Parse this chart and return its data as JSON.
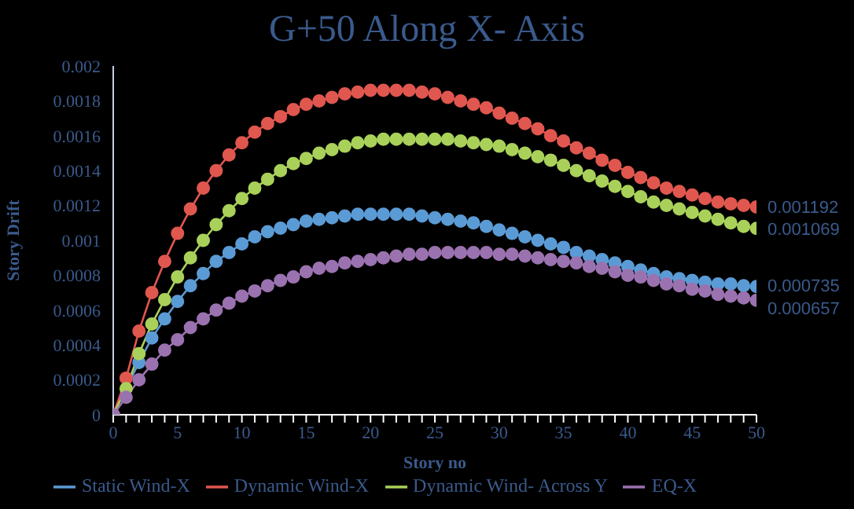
{
  "chart_data": {
    "type": "line",
    "title": "G+50 Along X- Axis",
    "xlabel": "Story no",
    "ylabel": "Story Drift",
    "x": [
      0,
      1,
      2,
      3,
      4,
      5,
      6,
      7,
      8,
      9,
      10,
      11,
      12,
      13,
      14,
      15,
      16,
      17,
      18,
      19,
      20,
      21,
      22,
      23,
      24,
      25,
      26,
      27,
      28,
      29,
      30,
      31,
      32,
      33,
      34,
      35,
      36,
      37,
      38,
      39,
      40,
      41,
      42,
      43,
      44,
      45,
      46,
      47,
      48,
      49,
      50
    ],
    "xlim": [
      0,
      50
    ],
    "xticks": [
      0,
      {
        "value": 1,
        "label": null
      },
      {
        "value": 2,
        "label": null
      },
      {
        "value": 3,
        "label": null
      },
      {
        "value": 4,
        "label": null
      },
      5,
      {
        "value": 6,
        "label": null
      },
      {
        "value": 7,
        "label": null
      },
      {
        "value": 8,
        "label": null
      },
      {
        "value": 9,
        "label": null
      },
      10,
      {
        "value": 11,
        "label": null
      },
      {
        "value": 12,
        "label": null
      },
      {
        "value": 13,
        "label": null
      },
      {
        "value": 14,
        "label": null
      },
      15,
      {
        "value": 16,
        "label": null
      },
      {
        "value": 17,
        "label": null
      },
      {
        "value": 18,
        "label": null
      },
      {
        "value": 19,
        "label": null
      },
      20,
      {
        "value": 21,
        "label": null
      },
      {
        "value": 22,
        "label": null
      },
      {
        "value": 23,
        "label": null
      },
      {
        "value": 24,
        "label": null
      },
      25,
      {
        "value": 26,
        "label": null
      },
      {
        "value": 27,
        "label": null
      },
      {
        "value": 28,
        "label": null
      },
      {
        "value": 29,
        "label": null
      },
      30,
      {
        "value": 31,
        "label": null
      },
      {
        "value": 32,
        "label": null
      },
      {
        "value": 33,
        "label": null
      },
      {
        "value": 34,
        "label": null
      },
      35,
      {
        "value": 36,
        "label": null
      },
      {
        "value": 37,
        "label": null
      },
      {
        "value": 38,
        "label": null
      },
      {
        "value": 39,
        "label": null
      },
      40,
      {
        "value": 41,
        "label": null
      },
      {
        "value": 42,
        "label": null
      },
      {
        "value": 43,
        "label": null
      },
      {
        "value": 44,
        "label": null
      },
      45,
      {
        "value": 46,
        "label": null
      },
      {
        "value": 47,
        "label": null
      },
      {
        "value": 48,
        "label": null
      },
      {
        "value": 49,
        "label": null
      },
      50
    ],
    "ylim": [
      0,
      0.002
    ],
    "yticks": [
      0,
      0.0002,
      0.0004,
      0.0006,
      0.0008,
      0.001,
      0.0012,
      0.0014,
      0.0016,
      0.0018,
      0.002
    ],
    "grid": false,
    "legend": "bottom",
    "marker": "circle",
    "line_style": "solid",
    "series": [
      {
        "name": "Static Wind-X",
        "color": "#5b9bd5",
        "values": [
          0,
          null,
          0.0003,
          0.00044,
          0.00055,
          0.00065,
          0.00074,
          0.00081,
          0.00088,
          0.00093,
          0.00098,
          0.00102,
          0.00105,
          0.00107,
          0.00109,
          0.00111,
          0.00112,
          0.00113,
          0.00114,
          0.00115,
          0.00115,
          0.00115,
          0.00115,
          0.00115,
          0.00114,
          0.00113,
          0.00112,
          0.00111,
          0.0011,
          0.00108,
          0.00106,
          0.00104,
          0.00102,
          0.001,
          0.00098,
          0.00096,
          0.00093,
          0.00091,
          0.00089,
          0.00087,
          0.00085,
          0.00083,
          0.00081,
          0.00079,
          0.00078,
          0.00077,
          0.00076,
          0.00075,
          0.00075,
          0.00074,
          0.000735
        ],
        "value_labels": [
          null,
          null,
          null,
          null,
          null,
          null,
          null,
          null,
          null,
          null,
          null,
          null,
          null,
          null,
          null,
          null,
          null,
          null,
          null,
          null,
          null,
          null,
          null,
          null,
          null,
          null,
          null,
          null,
          null,
          null,
          null,
          null,
          null,
          null,
          null,
          null,
          null,
          null,
          null,
          null,
          null,
          null,
          null,
          null,
          null,
          null,
          null,
          null,
          null,
          null,
          "0.000735"
        ]
      },
      {
        "name": "Dynamic Wind-X",
        "color": "#e0574f",
        "values": [
          0,
          0.00021,
          0.00048,
          0.0007,
          0.00088,
          0.00104,
          0.00118,
          0.0013,
          0.0014,
          0.00149,
          0.00156,
          0.00162,
          0.00167,
          0.00171,
          0.00175,
          0.00178,
          0.0018,
          0.00182,
          0.00184,
          0.00185,
          0.00186,
          0.00186,
          0.00186,
          0.00186,
          0.00185,
          0.00184,
          0.00182,
          0.0018,
          0.00178,
          0.00176,
          0.00173,
          0.0017,
          0.00167,
          0.00164,
          0.0016,
          0.00157,
          0.00153,
          0.0015,
          0.00146,
          0.00143,
          0.00139,
          0.00136,
          0.00133,
          0.0013,
          0.00128,
          0.00126,
          0.00124,
          0.00122,
          0.00121,
          0.0012,
          0.001192
        ],
        "value_labels": [
          null,
          null,
          null,
          null,
          null,
          null,
          null,
          null,
          null,
          null,
          null,
          null,
          null,
          null,
          null,
          null,
          null,
          null,
          null,
          null,
          null,
          null,
          null,
          null,
          null,
          null,
          null,
          null,
          null,
          null,
          null,
          null,
          null,
          null,
          null,
          null,
          null,
          null,
          null,
          null,
          null,
          null,
          null,
          null,
          null,
          null,
          null,
          null,
          null,
          null,
          "0.001192"
        ]
      },
      {
        "name": "Dynamic Wind- Across Y",
        "color": "#a9d15a",
        "values": [
          0,
          0.00015,
          0.00035,
          0.00052,
          0.00066,
          0.00079,
          0.0009,
          0.001,
          0.00109,
          0.00117,
          0.00124,
          0.0013,
          0.00135,
          0.0014,
          0.00144,
          0.00147,
          0.0015,
          0.00152,
          0.00154,
          0.00156,
          0.00157,
          0.00158,
          0.00158,
          0.00158,
          0.00158,
          0.00158,
          0.00158,
          0.00157,
          0.00156,
          0.00155,
          0.00154,
          0.00152,
          0.0015,
          0.00148,
          0.00146,
          0.00143,
          0.0014,
          0.00137,
          0.00134,
          0.00131,
          0.00128,
          0.00125,
          0.00122,
          0.0012,
          0.00118,
          0.00116,
          0.00114,
          0.00112,
          0.0011,
          0.00108,
          0.001069
        ],
        "value_labels": [
          null,
          null,
          null,
          null,
          null,
          null,
          null,
          null,
          null,
          null,
          null,
          null,
          null,
          null,
          null,
          null,
          null,
          null,
          null,
          null,
          null,
          null,
          null,
          null,
          null,
          null,
          null,
          null,
          null,
          null,
          null,
          null,
          null,
          null,
          null,
          null,
          null,
          null,
          null,
          null,
          null,
          null,
          null,
          null,
          null,
          null,
          null,
          null,
          null,
          null,
          "0.001069"
        ]
      },
      {
        "name": "EQ-X",
        "color": "#9b72b0",
        "values": [
          0,
          0.0001,
          0.0002,
          0.00029,
          0.00037,
          0.00043,
          0.0005,
          0.00055,
          0.0006,
          0.00064,
          0.00068,
          0.00071,
          0.00074,
          0.00077,
          0.00079,
          0.00082,
          0.00084,
          0.00085,
          0.00087,
          0.00088,
          0.00089,
          0.0009,
          0.00091,
          0.00092,
          0.00092,
          0.00093,
          0.00093,
          0.00093,
          0.00093,
          0.00093,
          0.00092,
          0.00092,
          0.00091,
          0.0009,
          0.00089,
          0.00088,
          0.00087,
          0.00085,
          0.00084,
          0.00082,
          0.0008,
          0.00079,
          0.00077,
          0.00075,
          0.00074,
          0.00072,
          0.00071,
          0.00069,
          0.00068,
          0.00067,
          0.000657
        ],
        "value_labels": [
          null,
          null,
          null,
          null,
          null,
          null,
          null,
          null,
          null,
          null,
          null,
          null,
          null,
          null,
          null,
          null,
          null,
          null,
          null,
          null,
          null,
          null,
          null,
          null,
          null,
          null,
          null,
          null,
          null,
          null,
          null,
          null,
          null,
          null,
          null,
          null,
          null,
          null,
          null,
          null,
          null,
          null,
          null,
          null,
          null,
          null,
          null,
          null,
          null,
          null,
          "0.000657"
        ]
      }
    ]
  }
}
